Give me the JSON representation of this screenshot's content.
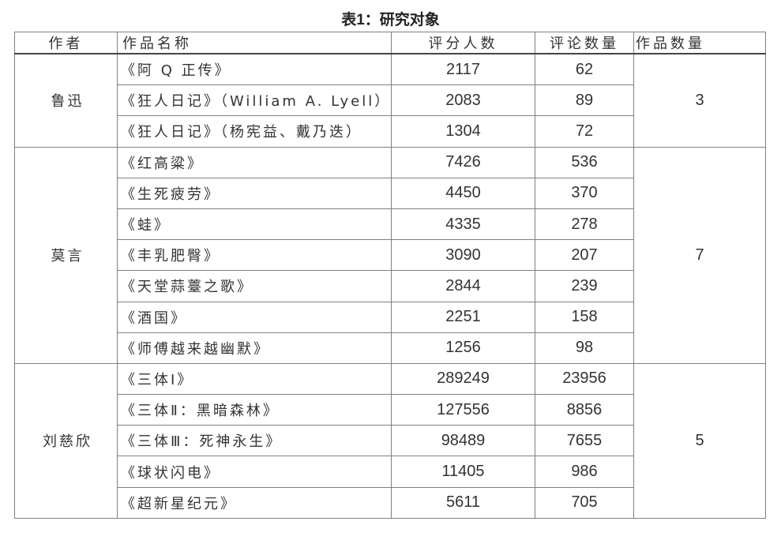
{
  "title": "表1：研究对象",
  "headers": [
    "作者",
    "作品名称",
    "评分人数",
    "评论数量",
    "作品数量"
  ],
  "groups": [
    {
      "author": "鲁迅",
      "count": "3",
      "works": [
        {
          "name": "《阿 Q 正传》",
          "ratings": "2117",
          "comments": "62"
        },
        {
          "name": "《狂人日记》（William A. Lyell）",
          "ratings": "2083",
          "comments": "89"
        },
        {
          "name": "《狂人日记》（杨宪益、戴乃迭）",
          "ratings": "1304",
          "comments": "72"
        }
      ]
    },
    {
      "author": "莫言",
      "count": "7",
      "works": [
        {
          "name": "《红高粱》",
          "ratings": "7426",
          "comments": "536"
        },
        {
          "name": "《生死疲劳》",
          "ratings": "4450",
          "comments": "370"
        },
        {
          "name": "《蛙》",
          "ratings": "4335",
          "comments": "278"
        },
        {
          "name": "《丰乳肥臀》",
          "ratings": "3090",
          "comments": "207"
        },
        {
          "name": "《天堂蒜薹之歌》",
          "ratings": "2844",
          "comments": "239"
        },
        {
          "name": "《酒国》",
          "ratings": "2251",
          "comments": "158"
        },
        {
          "name": "《师傅越来越幽默》",
          "ratings": "1256",
          "comments": "98"
        }
      ]
    },
    {
      "author": "刘慈欣",
      "count": "5",
      "works": [
        {
          "name": "《三体Ⅰ》",
          "ratings": "289249",
          "comments": "23956"
        },
        {
          "name": "《三体Ⅱ：黑暗森林》",
          "ratings": "127556",
          "comments": "8856"
        },
        {
          "name": "《三体Ⅲ：死神永生》",
          "ratings": "98489",
          "comments": "7655"
        },
        {
          "name": "《球状闪电》",
          "ratings": "11405",
          "comments": "986"
        },
        {
          "name": "《超新星纪元》",
          "ratings": "5611",
          "comments": "705"
        }
      ]
    }
  ]
}
